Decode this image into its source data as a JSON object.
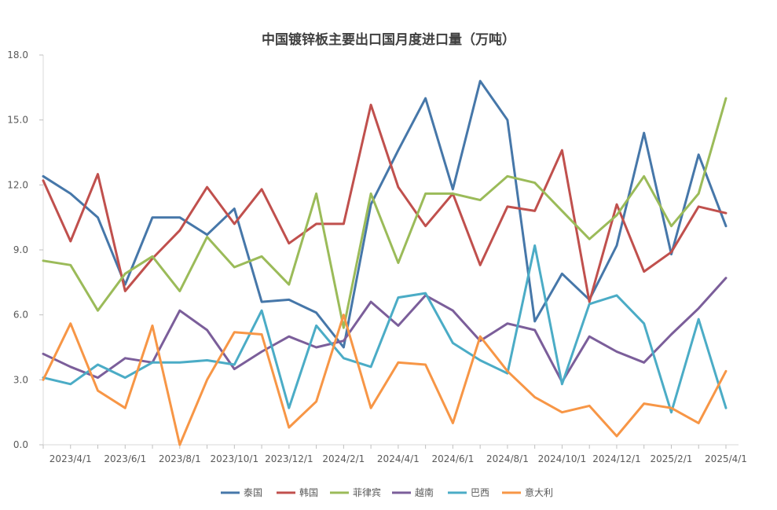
{
  "chart_data": {
    "type": "line",
    "title": "中国镀锌板主要出口国月度进口量（万吨）",
    "xlabel": "",
    "ylabel": "",
    "ylim": [
      0,
      18
    ],
    "y_ticks": [
      "0.0",
      "3.0",
      "6.0",
      "9.0",
      "12.0",
      "15.0",
      "18.0"
    ],
    "x_tick_labels": [
      "2023/4/1",
      "2023/6/1",
      "2023/8/1",
      "2023/10/1",
      "2023/12/1",
      "2024/2/1",
      "2024/4/1",
      "2024/6/1",
      "2024/8/1",
      "2024/10/1",
      "2024/12/1",
      "2025/2/1",
      "2025/4/1"
    ],
    "x": [
      "2023/3/1",
      "2023/4/1",
      "2023/5/1",
      "2023/6/1",
      "2023/7/1",
      "2023/8/1",
      "2023/9/1",
      "2023/10/1",
      "2023/11/1",
      "2023/12/1",
      "2024/1/1",
      "2024/2/1",
      "2024/3/1",
      "2024/4/1",
      "2024/5/1",
      "2024/6/1",
      "2024/7/1",
      "2024/8/1",
      "2024/9/1",
      "2024/10/1",
      "2024/11/1",
      "2024/12/1",
      "2025/1/1",
      "2025/2/1",
      "2025/3/1",
      "2025/4/1"
    ],
    "grid": "none",
    "legend_position": "bottom",
    "series": [
      {
        "name": "泰国",
        "color": "#4677a9",
        "values": [
          12.4,
          11.6,
          10.5,
          7.4,
          10.5,
          10.5,
          9.7,
          10.9,
          6.6,
          6.7,
          6.1,
          4.5,
          11.1,
          13.6,
          16.0,
          11.8,
          16.8,
          15.0,
          5.7,
          7.9,
          6.7,
          9.2,
          14.4,
          8.8,
          13.4,
          10.1
        ]
      },
      {
        "name": "韩国",
        "color": "#c0504d",
        "values": [
          12.2,
          9.4,
          12.5,
          7.1,
          8.6,
          9.9,
          11.9,
          10.2,
          11.8,
          9.3,
          10.2,
          10.2,
          15.7,
          11.9,
          10.1,
          11.6,
          8.3,
          11.0,
          10.8,
          13.6,
          6.6,
          11.1,
          8.0,
          8.9,
          11.0,
          10.7
        ]
      },
      {
        "name": "菲律宾",
        "color": "#9bbb59",
        "values": [
          8.5,
          8.3,
          6.2,
          7.9,
          8.7,
          7.1,
          9.6,
          8.2,
          8.7,
          7.4,
          11.6,
          5.4,
          11.6,
          8.4,
          11.6,
          11.6,
          11.3,
          12.4,
          12.1,
          10.8,
          9.5,
          10.6,
          12.4,
          10.1,
          11.6,
          16.0
        ]
      },
      {
        "name": "越南",
        "color": "#7b5e9a",
        "values": [
          4.2,
          3.6,
          3.1,
          4.0,
          3.8,
          6.2,
          5.3,
          3.5,
          4.3,
          5.0,
          4.5,
          4.8,
          6.6,
          5.5,
          6.9,
          6.2,
          4.8,
          5.6,
          5.3,
          2.9,
          5.0,
          4.3,
          3.8,
          5.1,
          6.3,
          7.7
        ]
      },
      {
        "name": "巴西",
        "color": "#4bacc6",
        "values": [
          3.1,
          2.8,
          3.7,
          3.1,
          3.8,
          3.8,
          3.9,
          3.7,
          6.2,
          1.7,
          5.5,
          4.0,
          3.6,
          6.8,
          7.0,
          4.7,
          3.9,
          3.3,
          9.2,
          2.8,
          6.5,
          6.9,
          5.6,
          1.5,
          5.8,
          1.7
        ]
      },
      {
        "name": "意大利",
        "color": "#f79646",
        "values": [
          3.0,
          5.6,
          2.5,
          1.7,
          5.5,
          0.0,
          3.0,
          5.2,
          5.1,
          0.8,
          2.0,
          6.0,
          1.7,
          3.8,
          3.7,
          1.0,
          5.0,
          3.4,
          2.2,
          1.5,
          1.8,
          0.4,
          1.9,
          1.7,
          1.0,
          3.4
        ]
      }
    ]
  }
}
